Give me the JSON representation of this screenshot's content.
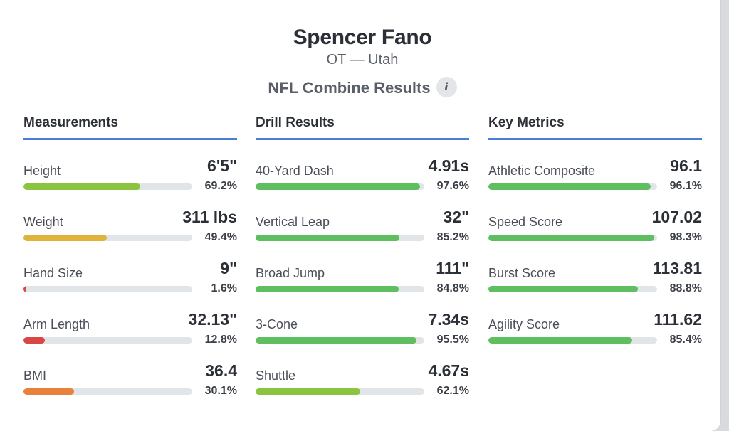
{
  "player": {
    "name": "Spencer Fano",
    "position_school": "OT — Utah"
  },
  "section_title": "NFL Combine Results",
  "info_icon": "info-icon",
  "colors": {
    "accent": "#4a7ed4",
    "green": "#5fbf60",
    "lime": "#8bc540",
    "yellow": "#e0b33b",
    "orange": "#e8813a",
    "red": "#d94646"
  },
  "columns": [
    {
      "title": "Measurements",
      "metrics": [
        {
          "label": "Height",
          "value": "6'5\"",
          "pct_text": "69.2%",
          "pct": 69.2,
          "color": "#8bc540"
        },
        {
          "label": "Weight",
          "value": "311 lbs",
          "pct_text": "49.4%",
          "pct": 49.4,
          "color": "#e0b33b"
        },
        {
          "label": "Hand Size",
          "value": "9\"",
          "pct_text": "1.6%",
          "pct": 1.6,
          "color": "#d94646"
        },
        {
          "label": "Arm Length",
          "value": "32.13\"",
          "pct_text": "12.8%",
          "pct": 12.8,
          "color": "#d94646"
        },
        {
          "label": "BMI",
          "value": "36.4",
          "pct_text": "30.1%",
          "pct": 30.1,
          "color": "#e8813a"
        }
      ]
    },
    {
      "title": "Drill Results",
      "metrics": [
        {
          "label": "40-Yard Dash",
          "value": "4.91s",
          "pct_text": "97.6%",
          "pct": 97.6,
          "color": "#5fbf60"
        },
        {
          "label": "Vertical Leap",
          "value": "32\"",
          "pct_text": "85.2%",
          "pct": 85.2,
          "color": "#5fbf60"
        },
        {
          "label": "Broad Jump",
          "value": "111\"",
          "pct_text": "84.8%",
          "pct": 84.8,
          "color": "#5fbf60"
        },
        {
          "label": "3-Cone",
          "value": "7.34s",
          "pct_text": "95.5%",
          "pct": 95.5,
          "color": "#5fbf60"
        },
        {
          "label": "Shuttle",
          "value": "4.67s",
          "pct_text": "62.1%",
          "pct": 62.1,
          "color": "#8bc540"
        }
      ]
    },
    {
      "title": "Key Metrics",
      "metrics": [
        {
          "label": "Athletic Composite",
          "value": "96.1",
          "pct_text": "96.1%",
          "pct": 96.1,
          "color": "#5fbf60"
        },
        {
          "label": "Speed Score",
          "value": "107.02",
          "pct_text": "98.3%",
          "pct": 98.3,
          "color": "#5fbf60"
        },
        {
          "label": "Burst Score",
          "value": "113.81",
          "pct_text": "88.8%",
          "pct": 88.8,
          "color": "#5fbf60"
        },
        {
          "label": "Agility Score",
          "value": "111.62",
          "pct_text": "85.4%",
          "pct": 85.4,
          "color": "#5fbf60"
        }
      ]
    }
  ]
}
